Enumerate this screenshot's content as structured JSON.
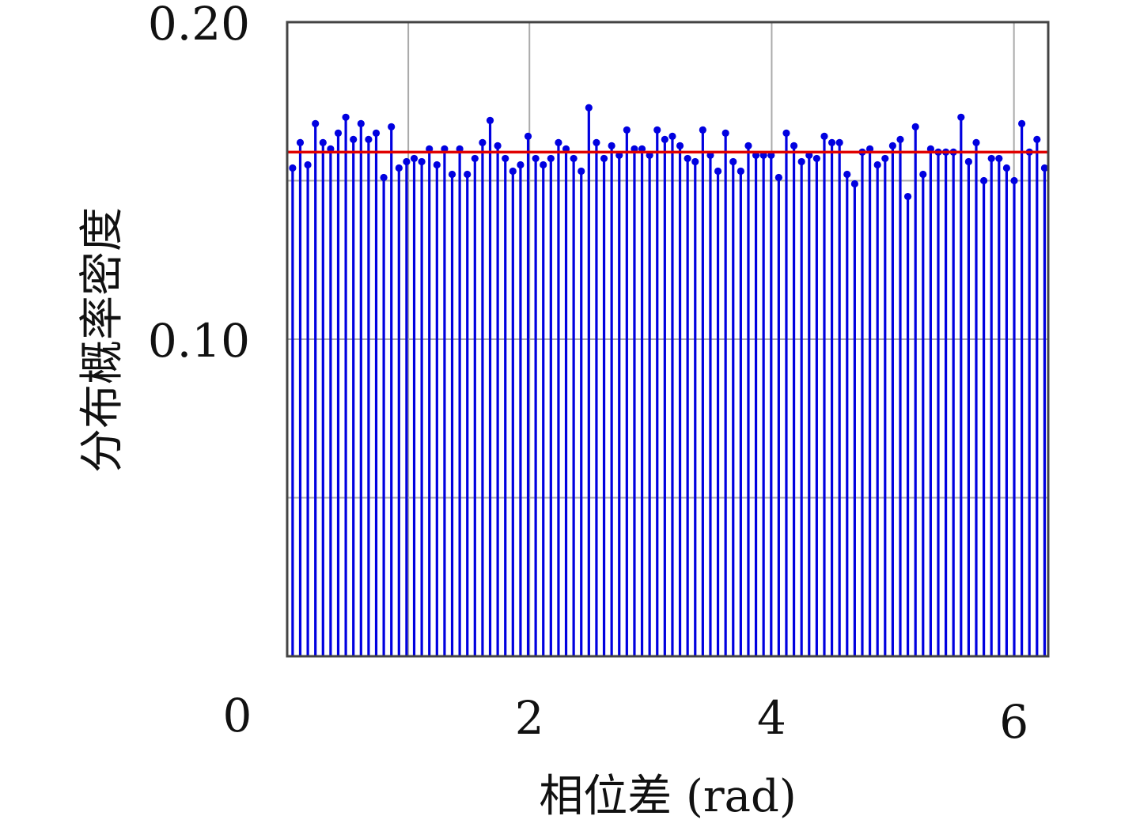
{
  "chart_data": {
    "type": "stem",
    "xlabel": "相位差 (rad)",
    "ylabel": "分布概率密度",
    "xlim": [
      0,
      6.283
    ],
    "ylim": [
      0,
      0.2
    ],
    "x_ticks": [
      {
        "value": 0,
        "label": "0"
      },
      {
        "value": 2,
        "label": "2"
      },
      {
        "value": 4,
        "label": "4"
      },
      {
        "value": 6,
        "label": "6"
      }
    ],
    "y_ticks": [
      {
        "value": 0.2,
        "label": "0.20"
      },
      {
        "value": 0.1,
        "label": "0.10"
      }
    ],
    "grid": true,
    "reference_line": {
      "value": 0.159
    },
    "colors": {
      "stem": "#0000e0",
      "reference": "#e00000",
      "grid": "#aaaaaa",
      "frame": "#444444"
    },
    "series": [
      {
        "values": [
          0.154,
          0.162,
          0.155,
          0.168,
          0.162,
          0.16,
          0.165,
          0.17,
          0.163,
          0.168,
          0.163,
          0.165,
          0.151,
          0.167,
          0.154,
          0.156,
          0.157,
          0.156,
          0.16,
          0.155,
          0.16,
          0.152,
          0.16,
          0.152,
          0.157,
          0.162,
          0.169,
          0.161,
          0.157,
          0.153,
          0.155,
          0.164,
          0.157,
          0.155,
          0.157,
          0.162,
          0.16,
          0.157,
          0.153,
          0.173,
          0.162,
          0.157,
          0.161,
          0.158,
          0.166,
          0.16,
          0.16,
          0.158,
          0.166,
          0.163,
          0.164,
          0.161,
          0.157,
          0.156,
          0.166,
          0.158,
          0.153,
          0.165,
          0.156,
          0.153,
          0.161,
          0.158,
          0.158,
          0.158,
          0.151,
          0.165,
          0.161,
          0.156,
          0.158,
          0.157,
          0.164,
          0.162,
          0.162,
          0.152,
          0.149,
          0.159,
          0.16,
          0.155,
          0.157,
          0.161,
          0.163,
          0.145,
          0.167,
          0.152,
          0.16,
          0.159,
          0.159,
          0.159,
          0.17,
          0.156,
          0.162,
          0.15,
          0.157,
          0.157,
          0.154,
          0.15,
          0.168,
          0.159,
          0.163,
          0.154
        ]
      }
    ]
  }
}
